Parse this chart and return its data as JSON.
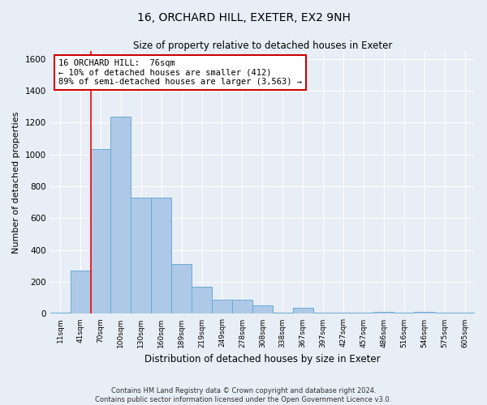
{
  "title_line1": "16, ORCHARD HILL, EXETER, EX2 9NH",
  "title_line2": "Size of property relative to detached houses in Exeter",
  "xlabel": "Distribution of detached houses by size in Exeter",
  "ylabel": "Number of detached properties",
  "categories": [
    "11sqm",
    "41sqm",
    "70sqm",
    "100sqm",
    "130sqm",
    "160sqm",
    "189sqm",
    "219sqm",
    "249sqm",
    "278sqm",
    "308sqm",
    "338sqm",
    "367sqm",
    "397sqm",
    "427sqm",
    "457sqm",
    "486sqm",
    "516sqm",
    "546sqm",
    "575sqm",
    "605sqm"
  ],
  "bar_heights": [
    5,
    270,
    1035,
    1240,
    730,
    730,
    310,
    170,
    90,
    90,
    55,
    5,
    40,
    5,
    5,
    5,
    10,
    5,
    10,
    5,
    5
  ],
  "bar_color": "#aec9e8",
  "bar_edge_color": "#6aaad4",
  "ylim": [
    0,
    1650
  ],
  "yticks": [
    0,
    200,
    400,
    600,
    800,
    1000,
    1200,
    1400,
    1600
  ],
  "property_line_bin": 2,
  "annotation_text": "16 ORCHARD HILL:  76sqm\n← 10% of detached houses are smaller (412)\n89% of semi-detached houses are larger (3,563) →",
  "annotation_box_color": "#ffffff",
  "annotation_border_color": "#cc0000",
  "footer_line1": "Contains HM Land Registry data © Crown copyright and database right 2024.",
  "footer_line2": "Contains public sector information licensed under the Open Government Licence v3.0.",
  "bg_color": "#e8eef5",
  "plot_bg_color": "#e8eef5",
  "grid_color": "#ffffff"
}
